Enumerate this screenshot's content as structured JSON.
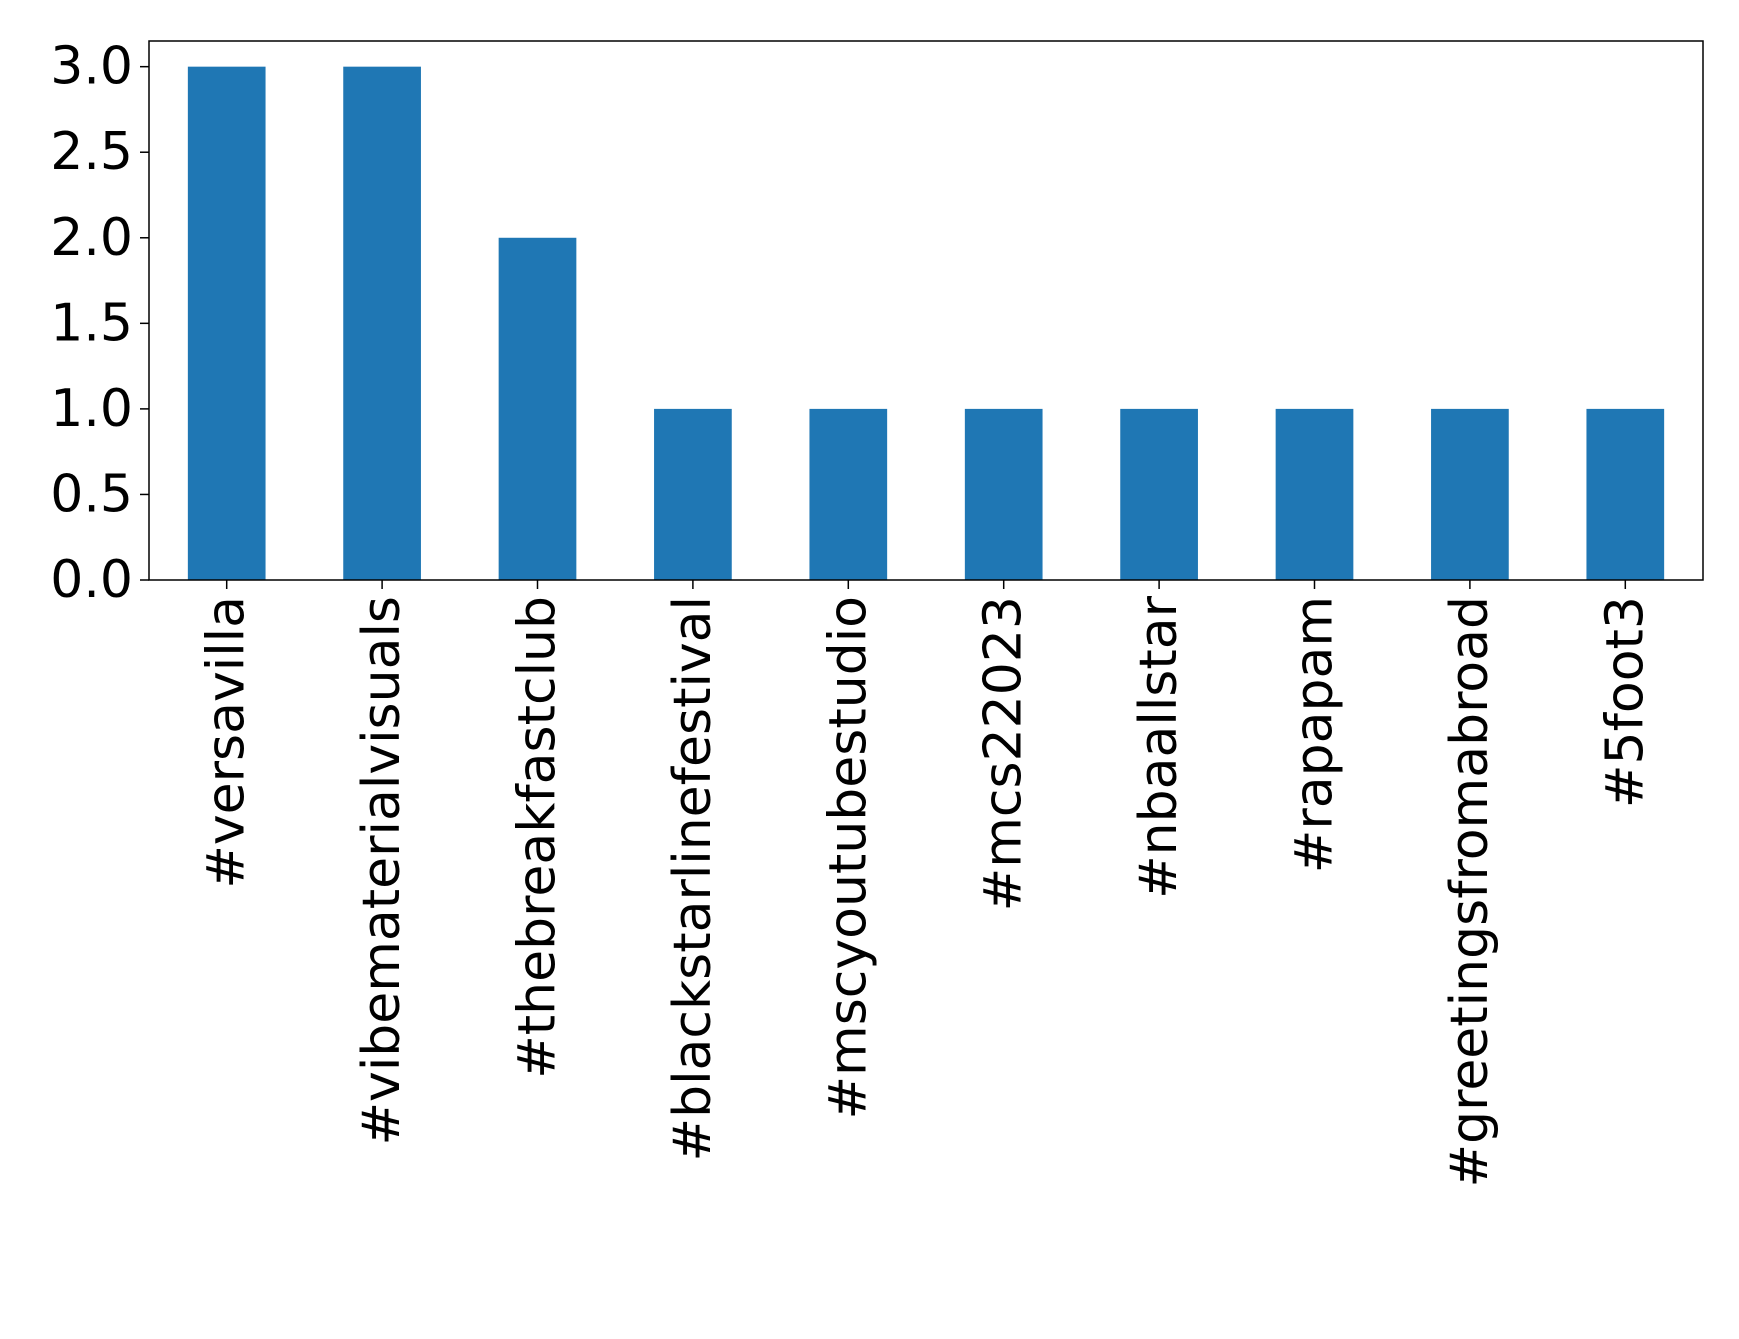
{
  "chart_data": {
    "type": "bar",
    "title": "",
    "xlabel": "",
    "ylabel": "",
    "categories": [
      "#versavilla",
      "#vibematerialvisuals",
      "#thebreakfastclub",
      "#blackstarlinefestival",
      "#mscyoutubestudio",
      "#mcs22023",
      "#nbaallstar",
      "#rapapam",
      "#greetingsfromabroad",
      "#5foot3"
    ],
    "values": [
      3,
      3,
      2,
      1,
      1,
      1,
      1,
      1,
      1,
      1
    ],
    "ylim": [
      0,
      3.15
    ],
    "yticks": [
      "0.0",
      "0.5",
      "1.0",
      "1.5",
      "2.0",
      "2.5",
      "3.0"
    ],
    "grid": false,
    "legend": "none",
    "bar_color": "#1f77b4"
  }
}
